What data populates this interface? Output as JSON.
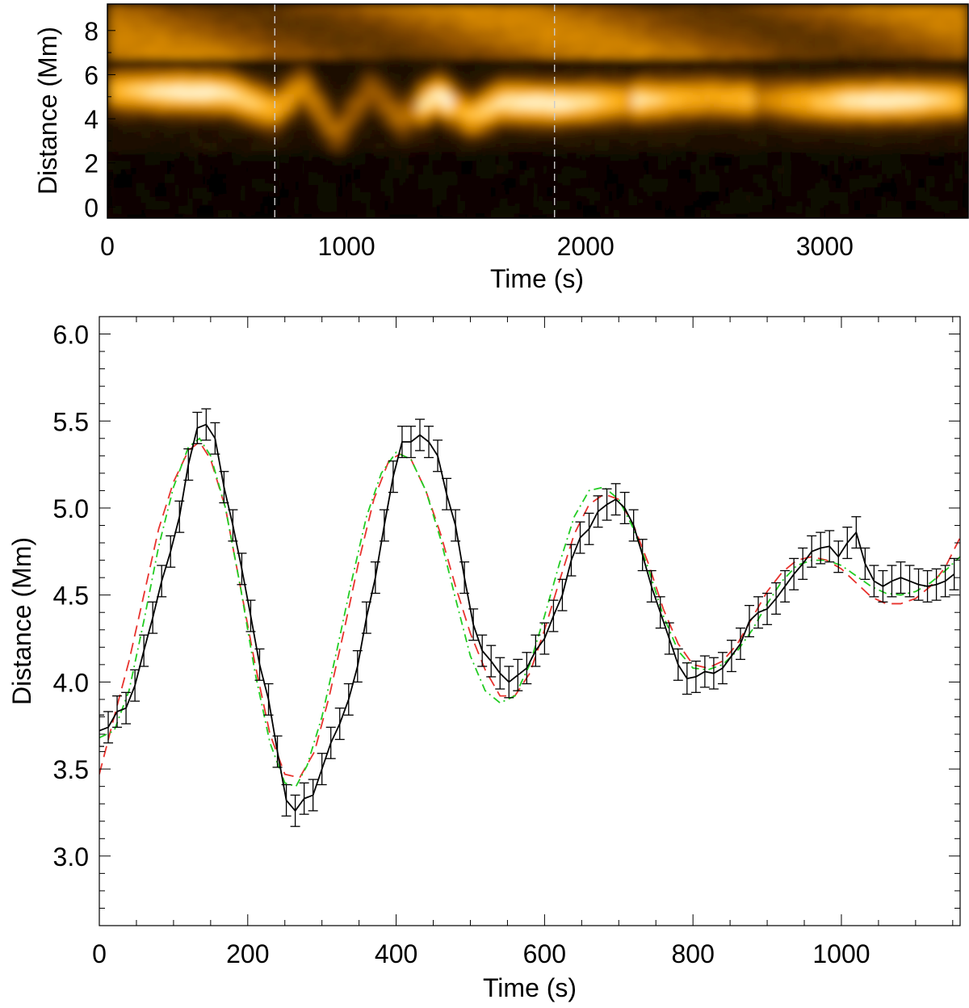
{
  "chart_data": [
    {
      "type": "heatmap",
      "title": "",
      "xlabel": "Time (s)",
      "ylabel": "Distance (Mm)",
      "xlim": [
        0,
        3600
      ],
      "ylim": [
        -0.5,
        9.2
      ],
      "x_ticks": [
        0,
        1000,
        2000,
        3000
      ],
      "x_tick_labels": [
        "0",
        "1000",
        "2000",
        "3000"
      ],
      "y_ticks": [
        0,
        2,
        4,
        6,
        8
      ],
      "y_tick_labels": [
        "0",
        "2",
        "4",
        "6",
        "8"
      ],
      "colormap": [
        "#000000",
        "#3a2000",
        "#8a4c00",
        "#d98a00",
        "#ffb21a",
        "#ffe9b0",
        "#ffffff"
      ],
      "markers": [
        {
          "type": "vertical-dashed-line",
          "x": 700,
          "color": "#cccccc"
        },
        {
          "type": "vertical-dashed-line",
          "x": 1870,
          "color": "#cccccc"
        }
      ],
      "bright_thread_center": [
        {
          "t": 0,
          "d": 5.3
        },
        {
          "t": 500,
          "d": 5.2
        },
        {
          "t": 700,
          "d": 4.4
        },
        {
          "t": 820,
          "d": 5.5
        },
        {
          "t": 960,
          "d": 3.3
        },
        {
          "t": 1100,
          "d": 5.4
        },
        {
          "t": 1230,
          "d": 4.0
        },
        {
          "t": 1380,
          "d": 5.1
        },
        {
          "t": 1520,
          "d": 4.1
        },
        {
          "t": 1650,
          "d": 4.8
        },
        {
          "t": 1870,
          "d": 4.7
        },
        {
          "t": 2500,
          "d": 5.0
        },
        {
          "t": 3000,
          "d": 4.8
        },
        {
          "t": 3600,
          "d": 4.9
        }
      ]
    },
    {
      "type": "line",
      "title": "",
      "xlabel": "Time (s)",
      "ylabel": "Distance (Mm)",
      "xlim": [
        0,
        1160
      ],
      "ylim": [
        2.6,
        6.1
      ],
      "x_ticks": [
        0,
        200,
        400,
        600,
        800,
        1000
      ],
      "x_tick_labels": [
        "0",
        "200",
        "400",
        "600",
        "800",
        "1000"
      ],
      "x_minor_step": 50,
      "y_ticks": [
        3.0,
        3.5,
        4.0,
        4.5,
        5.0,
        5.5,
        6.0
      ],
      "y_tick_labels": [
        "3.0",
        "3.5",
        "4.0",
        "4.5",
        "5.0",
        "5.5",
        "6.0"
      ],
      "y_minor_step": 0.1,
      "grid": false,
      "legend": "none",
      "series": [
        {
          "style": "solid-with-errorbars",
          "color": "#000000",
          "error": 0.09,
          "x": [
            0,
            12,
            24,
            36,
            48,
            60,
            72,
            84,
            96,
            108,
            120,
            132,
            144,
            156,
            168,
            180,
            192,
            204,
            216,
            228,
            240,
            252,
            264,
            276,
            288,
            300,
            312,
            324,
            336,
            348,
            360,
            372,
            384,
            396,
            408,
            420,
            432,
            444,
            456,
            468,
            480,
            492,
            504,
            516,
            528,
            540,
            552,
            564,
            576,
            588,
            600,
            612,
            624,
            636,
            648,
            660,
            672,
            684,
            696,
            708,
            720,
            732,
            744,
            756,
            768,
            780,
            792,
            804,
            816,
            828,
            840,
            852,
            864,
            876,
            888,
            900,
            912,
            924,
            936,
            948,
            960,
            972,
            984,
            996,
            1008,
            1020,
            1032,
            1044,
            1056,
            1068,
            1080,
            1092,
            1104,
            1116,
            1128,
            1140,
            1152
          ],
          "values": [
            3.72,
            3.74,
            3.83,
            3.85,
            3.98,
            4.18,
            4.37,
            4.58,
            4.75,
            4.95,
            5.25,
            5.46,
            5.48,
            5.4,
            5.12,
            4.9,
            4.65,
            4.38,
            4.1,
            3.9,
            3.6,
            3.32,
            3.26,
            3.33,
            3.35,
            3.5,
            3.65,
            3.76,
            3.9,
            4.09,
            4.37,
            4.6,
            4.9,
            5.18,
            5.38,
            5.38,
            5.42,
            5.38,
            5.3,
            5.08,
            4.9,
            4.6,
            4.33,
            4.18,
            4.12,
            4.05,
            4.0,
            4.04,
            4.08,
            4.18,
            4.25,
            4.38,
            4.5,
            4.7,
            4.83,
            4.88,
            4.98,
            5.02,
            5.05,
            5.0,
            4.9,
            4.73,
            4.55,
            4.4,
            4.25,
            4.1,
            4.02,
            4.03,
            4.06,
            4.05,
            4.08,
            4.15,
            4.22,
            4.35,
            4.4,
            4.42,
            4.48,
            4.55,
            4.62,
            4.68,
            4.75,
            4.77,
            4.78,
            4.72,
            4.8,
            4.86,
            4.68,
            4.58,
            4.55,
            4.58,
            4.6,
            4.58,
            4.56,
            4.55,
            4.56,
            4.58,
            4.62
          ]
        },
        {
          "style": "dashed",
          "color": "#e8322d",
          "x": [
            0,
            20,
            40,
            60,
            80,
            100,
            120,
            135,
            150,
            170,
            190,
            210,
            230,
            250,
            270,
            290,
            310,
            330,
            350,
            370,
            390,
            405,
            420,
            440,
            460,
            480,
            500,
            520,
            540,
            560,
            580,
            600,
            620,
            640,
            660,
            680,
            700,
            720,
            740,
            760,
            780,
            800,
            820,
            840,
            860,
            880,
            900,
            920,
            940,
            960,
            980,
            1000,
            1020,
            1040,
            1060,
            1080,
            1100,
            1120,
            1140,
            1160
          ],
          "values": [
            3.47,
            3.8,
            4.12,
            4.5,
            4.88,
            5.15,
            5.33,
            5.38,
            5.28,
            5.0,
            4.55,
            4.1,
            3.7,
            3.47,
            3.45,
            3.6,
            3.92,
            4.3,
            4.7,
            5.05,
            5.27,
            5.31,
            5.28,
            5.1,
            4.85,
            4.55,
            4.28,
            4.07,
            3.92,
            3.92,
            4.05,
            4.3,
            4.58,
            4.85,
            5.02,
            5.08,
            5.05,
            4.9,
            4.68,
            4.42,
            4.22,
            4.1,
            4.08,
            4.12,
            4.22,
            4.37,
            4.52,
            4.63,
            4.7,
            4.72,
            4.7,
            4.65,
            4.57,
            4.49,
            4.45,
            4.45,
            4.48,
            4.55,
            4.66,
            4.83
          ]
        },
        {
          "style": "dash-dot",
          "color": "#22cc22",
          "x": [
            0,
            20,
            40,
            60,
            80,
            100,
            120,
            135,
            150,
            170,
            190,
            210,
            230,
            250,
            265,
            280,
            300,
            320,
            340,
            360,
            380,
            400,
            420,
            440,
            460,
            480,
            500,
            520,
            540,
            560,
            580,
            600,
            620,
            640,
            660,
            680,
            700,
            720,
            740,
            760,
            780,
            800,
            820,
            840,
            860,
            880,
            900,
            920,
            940,
            960,
            980,
            1000,
            1020,
            1040,
            1060,
            1080,
            1100,
            1120,
            1140,
            1160
          ],
          "values": [
            3.68,
            3.72,
            3.95,
            4.35,
            4.78,
            5.12,
            5.35,
            5.4,
            5.3,
            5.0,
            4.55,
            4.05,
            3.65,
            3.42,
            3.4,
            3.52,
            3.8,
            4.18,
            4.58,
            4.95,
            5.2,
            5.32,
            5.28,
            5.1,
            4.82,
            4.48,
            4.15,
            3.95,
            3.88,
            3.92,
            4.1,
            4.38,
            4.68,
            4.95,
            5.1,
            5.12,
            5.05,
            4.88,
            4.65,
            4.38,
            4.18,
            4.08,
            4.07,
            4.1,
            4.18,
            4.3,
            4.45,
            4.58,
            4.67,
            4.7,
            4.7,
            4.67,
            4.61,
            4.55,
            4.51,
            4.5,
            4.52,
            4.57,
            4.64,
            4.72
          ]
        }
      ]
    }
  ]
}
